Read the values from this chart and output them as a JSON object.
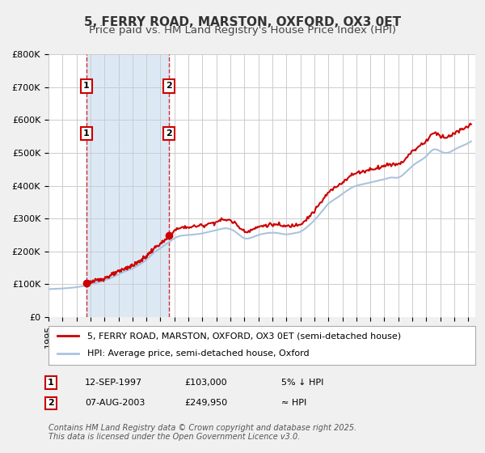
{
  "title": "5, FERRY ROAD, MARSTON, OXFORD, OX3 0ET",
  "subtitle": "Price paid vs. HM Land Registry's House Price Index (HPI)",
  "ylabel": "",
  "ylim": [
    0,
    800000
  ],
  "yticks": [
    0,
    100000,
    200000,
    300000,
    400000,
    500000,
    600000,
    700000,
    800000
  ],
  "ytick_labels": [
    "£0",
    "£100K",
    "£200K",
    "£300K",
    "£400K",
    "£500K",
    "£600K",
    "£700K",
    "£800K"
  ],
  "xlim_start": 1995.0,
  "xlim_end": 2025.5,
  "transaction1": {
    "date": 1997.7,
    "price": 103000,
    "label": "1"
  },
  "transaction2": {
    "date": 2003.6,
    "price": 249950,
    "label": "2"
  },
  "hpi_line_color": "#aac4dd",
  "price_line_color": "#cc0000",
  "shade_color": "#dce9f5",
  "background_color": "#f0f0f0",
  "plot_bg_color": "#ffffff",
  "grid_color": "#cccccc",
  "legend_label_price": "5, FERRY ROAD, MARSTON, OXFORD, OX3 0ET (semi-detached house)",
  "legend_label_hpi": "HPI: Average price, semi-detached house, Oxford",
  "table_row1": [
    "1",
    "12-SEP-1997",
    "£103,000",
    "5% ↓ HPI"
  ],
  "table_row2": [
    "2",
    "07-AUG-2003",
    "£249,950",
    "≈ HPI"
  ],
  "footer": "Contains HM Land Registry data © Crown copyright and database right 2025.\nThis data is licensed under the Open Government Licence v3.0.",
  "title_fontsize": 11,
  "subtitle_fontsize": 9.5,
  "tick_fontsize": 8,
  "legend_fontsize": 8,
  "table_fontsize": 8,
  "footer_fontsize": 7
}
